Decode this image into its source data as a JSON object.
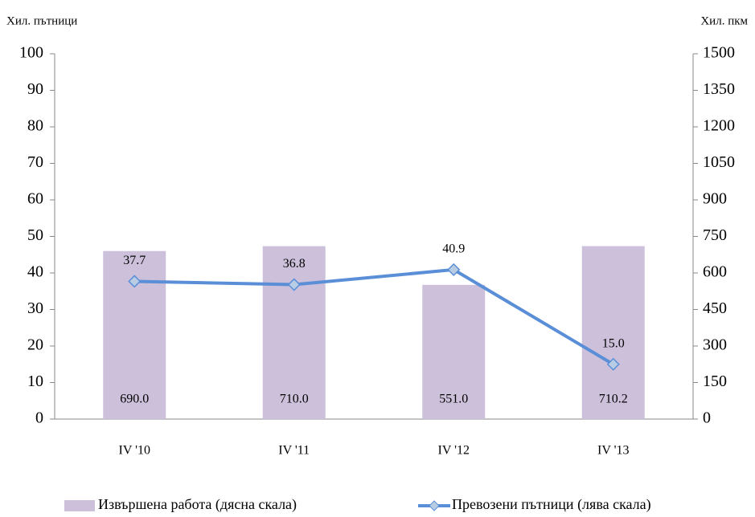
{
  "chart_data": {
    "type": "bar",
    "y_label": "Хил. пътници",
    "y2_label": "Хил. пкм",
    "categories": [
      "IV '10",
      "IV '11",
      "IV '12",
      "IV '13"
    ],
    "series": [
      {
        "name": "Извършена работа (дясна скала)",
        "type": "bar",
        "axis": "y2",
        "color": "#ccc0da",
        "values": [
          690.0,
          710.0,
          551.0,
          710.2
        ],
        "value_labels": [
          "690.0",
          "710.0",
          "551.0",
          "710.2"
        ]
      },
      {
        "name": "Превозени пътници (лява скала)",
        "type": "line",
        "axis": "y",
        "color": "#5a8fd8",
        "values": [
          37.7,
          36.8,
          40.9,
          15.0
        ],
        "value_labels": [
          "37.7",
          "36.8",
          "40.9",
          "15.0"
        ]
      }
    ],
    "ylim": [
      0,
      100
    ],
    "yticks": [
      0,
      10,
      20,
      30,
      40,
      50,
      60,
      70,
      80,
      90,
      100
    ],
    "y2lim": [
      0,
      1500
    ],
    "y2ticks": [
      0,
      150,
      300,
      450,
      600,
      750,
      900,
      1050,
      1200,
      1350,
      1500
    ],
    "grid": false
  }
}
